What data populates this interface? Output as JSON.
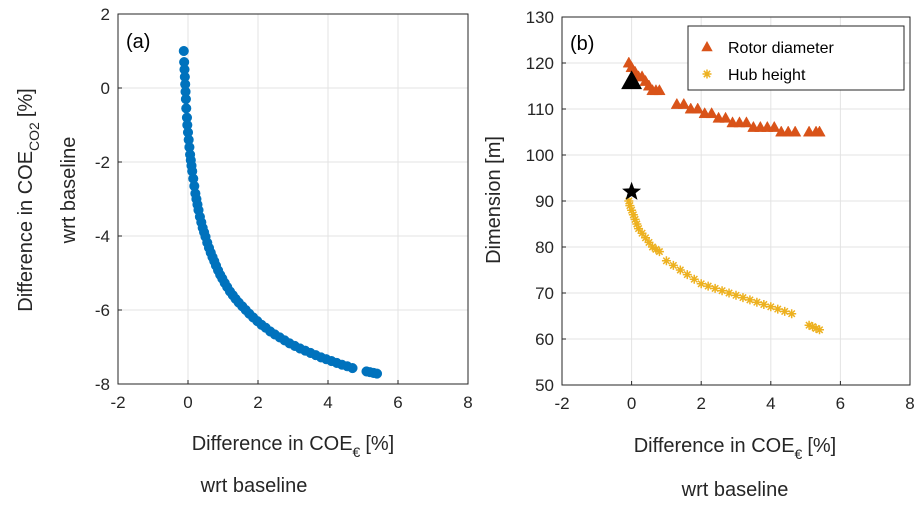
{
  "figure": {
    "xlabel_main": "Difference in COE",
    "xlabel_sub": "€",
    "xlabel_unit": "[%]",
    "xlabel_second_line": "wrt baseline",
    "ylabel_a_main": "Difference in COE",
    "ylabel_a_sub": "CO2",
    "ylabel_a_unit": "[%]",
    "ylabel_a_second_line": "wrt baseline",
    "ylabel_b": "Dimension [m]"
  },
  "chart_data": [
    {
      "type": "scatter",
      "panel_label": "(a)",
      "xlim": [
        -2,
        8
      ],
      "ylim": [
        -8,
        2
      ],
      "xticks": [
        "-2",
        "0",
        "2",
        "4",
        "6",
        "8"
      ],
      "yticks": [
        "-8",
        "-6",
        "-4",
        "-2",
        "0",
        "2"
      ],
      "grid": true,
      "color": "#0072BD",
      "series": [
        {
          "x": [
            -0.12,
            -0.11,
            -0.1,
            -0.09,
            -0.08,
            -0.07,
            -0.06,
            -0.05,
            -0.03,
            -0.02,
            0.0,
            0.02,
            0.04,
            0.06,
            0.08,
            0.1,
            0.12,
            0.15,
            0.18,
            0.21,
            0.24,
            0.27,
            0.3,
            0.34,
            0.38,
            0.42,
            0.46,
            0.5,
            0.55,
            0.6,
            0.65,
            0.7,
            0.75,
            0.8,
            0.86,
            0.92,
            0.98,
            1.05,
            1.12,
            1.2,
            1.28,
            1.36,
            1.45,
            1.55,
            1.65,
            1.75,
            1.86,
            1.98,
            2.1,
            2.22,
            2.35,
            2.48,
            2.62,
            2.76,
            2.9,
            3.05,
            3.2,
            3.35,
            3.5,
            3.65,
            3.8,
            3.95,
            4.1,
            4.25,
            4.4,
            4.55,
            4.7,
            5.1,
            5.2,
            5.3,
            5.4
          ],
          "y": [
            1.0,
            0.7,
            0.5,
            0.3,
            0.1,
            -0.1,
            -0.3,
            -0.55,
            -0.8,
            -1.0,
            -1.2,
            -1.4,
            -1.6,
            -1.8,
            -1.95,
            -2.1,
            -2.25,
            -2.45,
            -2.65,
            -2.85,
            -3.0,
            -3.15,
            -3.3,
            -3.48,
            -3.63,
            -3.78,
            -3.9,
            -4.02,
            -4.18,
            -4.32,
            -4.45,
            -4.57,
            -4.68,
            -4.8,
            -4.93,
            -5.05,
            -5.15,
            -5.27,
            -5.38,
            -5.5,
            -5.6,
            -5.7,
            -5.8,
            -5.9,
            -6.0,
            -6.1,
            -6.2,
            -6.3,
            -6.4,
            -6.48,
            -6.58,
            -6.66,
            -6.74,
            -6.82,
            -6.9,
            -6.97,
            -7.04,
            -7.1,
            -7.16,
            -7.22,
            -7.28,
            -7.33,
            -7.38,
            -7.43,
            -7.48,
            -7.52,
            -7.57,
            -7.66,
            -7.68,
            -7.7,
            -7.72
          ]
        }
      ]
    },
    {
      "type": "scatter",
      "panel_label": "(b)",
      "xlim": [
        -2,
        8
      ],
      "ylim": [
        50,
        130
      ],
      "xticks": [
        "-2",
        "0",
        "2",
        "4",
        "6",
        "8"
      ],
      "yticks": [
        "50",
        "60",
        "70",
        "80",
        "90",
        "100",
        "110",
        "120",
        "130"
      ],
      "grid": true,
      "legend": "top-right",
      "series": [
        {
          "name": "Rotor diameter",
          "marker": "triangle",
          "color": "#D95319",
          "x": [
            -0.08,
            0.0,
            0.1,
            0.2,
            0.3,
            0.4,
            0.5,
            0.6,
            0.7,
            0.8,
            1.3,
            1.5,
            1.7,
            1.9,
            2.1,
            2.3,
            2.5,
            2.7,
            2.9,
            3.1,
            3.3,
            3.5,
            3.7,
            3.9,
            4.1,
            4.3,
            4.5,
            4.7,
            5.1,
            5.3,
            5.4
          ],
          "y": [
            120,
            119,
            118,
            117,
            117,
            116,
            115,
            114,
            114,
            114,
            111,
            111,
            110,
            110,
            109,
            109,
            108,
            108,
            107,
            107,
            107,
            106,
            106,
            106,
            106,
            105,
            105,
            105,
            105,
            105,
            105
          ]
        },
        {
          "name": "Hub height",
          "marker": "asterisk",
          "color": "#EDB120",
          "x": [
            -0.08,
            -0.05,
            0.0,
            0.05,
            0.1,
            0.15,
            0.2,
            0.3,
            0.4,
            0.5,
            0.6,
            0.7,
            0.8,
            1.0,
            1.2,
            1.4,
            1.6,
            1.8,
            2.0,
            2.2,
            2.4,
            2.6,
            2.8,
            3.0,
            3.2,
            3.4,
            3.6,
            3.8,
            4.0,
            4.2,
            4.4,
            4.6,
            5.1,
            5.2,
            5.3,
            5.4
          ],
          "y": [
            90,
            89,
            88,
            87,
            86,
            85,
            84,
            83,
            82,
            81,
            80,
            79.5,
            79,
            77,
            76,
            75,
            74,
            73,
            72,
            71.5,
            71,
            70.5,
            70,
            69.5,
            69,
            68.5,
            68,
            67.5,
            67,
            66.5,
            66,
            65.5,
            63,
            62.7,
            62.3,
            62
          ]
        }
      ],
      "baseline_markers": [
        {
          "marker": "triangle",
          "color": "#000000",
          "x": 0,
          "y": 116
        },
        {
          "marker": "star",
          "color": "#000000",
          "x": 0,
          "y": 92
        }
      ]
    }
  ]
}
